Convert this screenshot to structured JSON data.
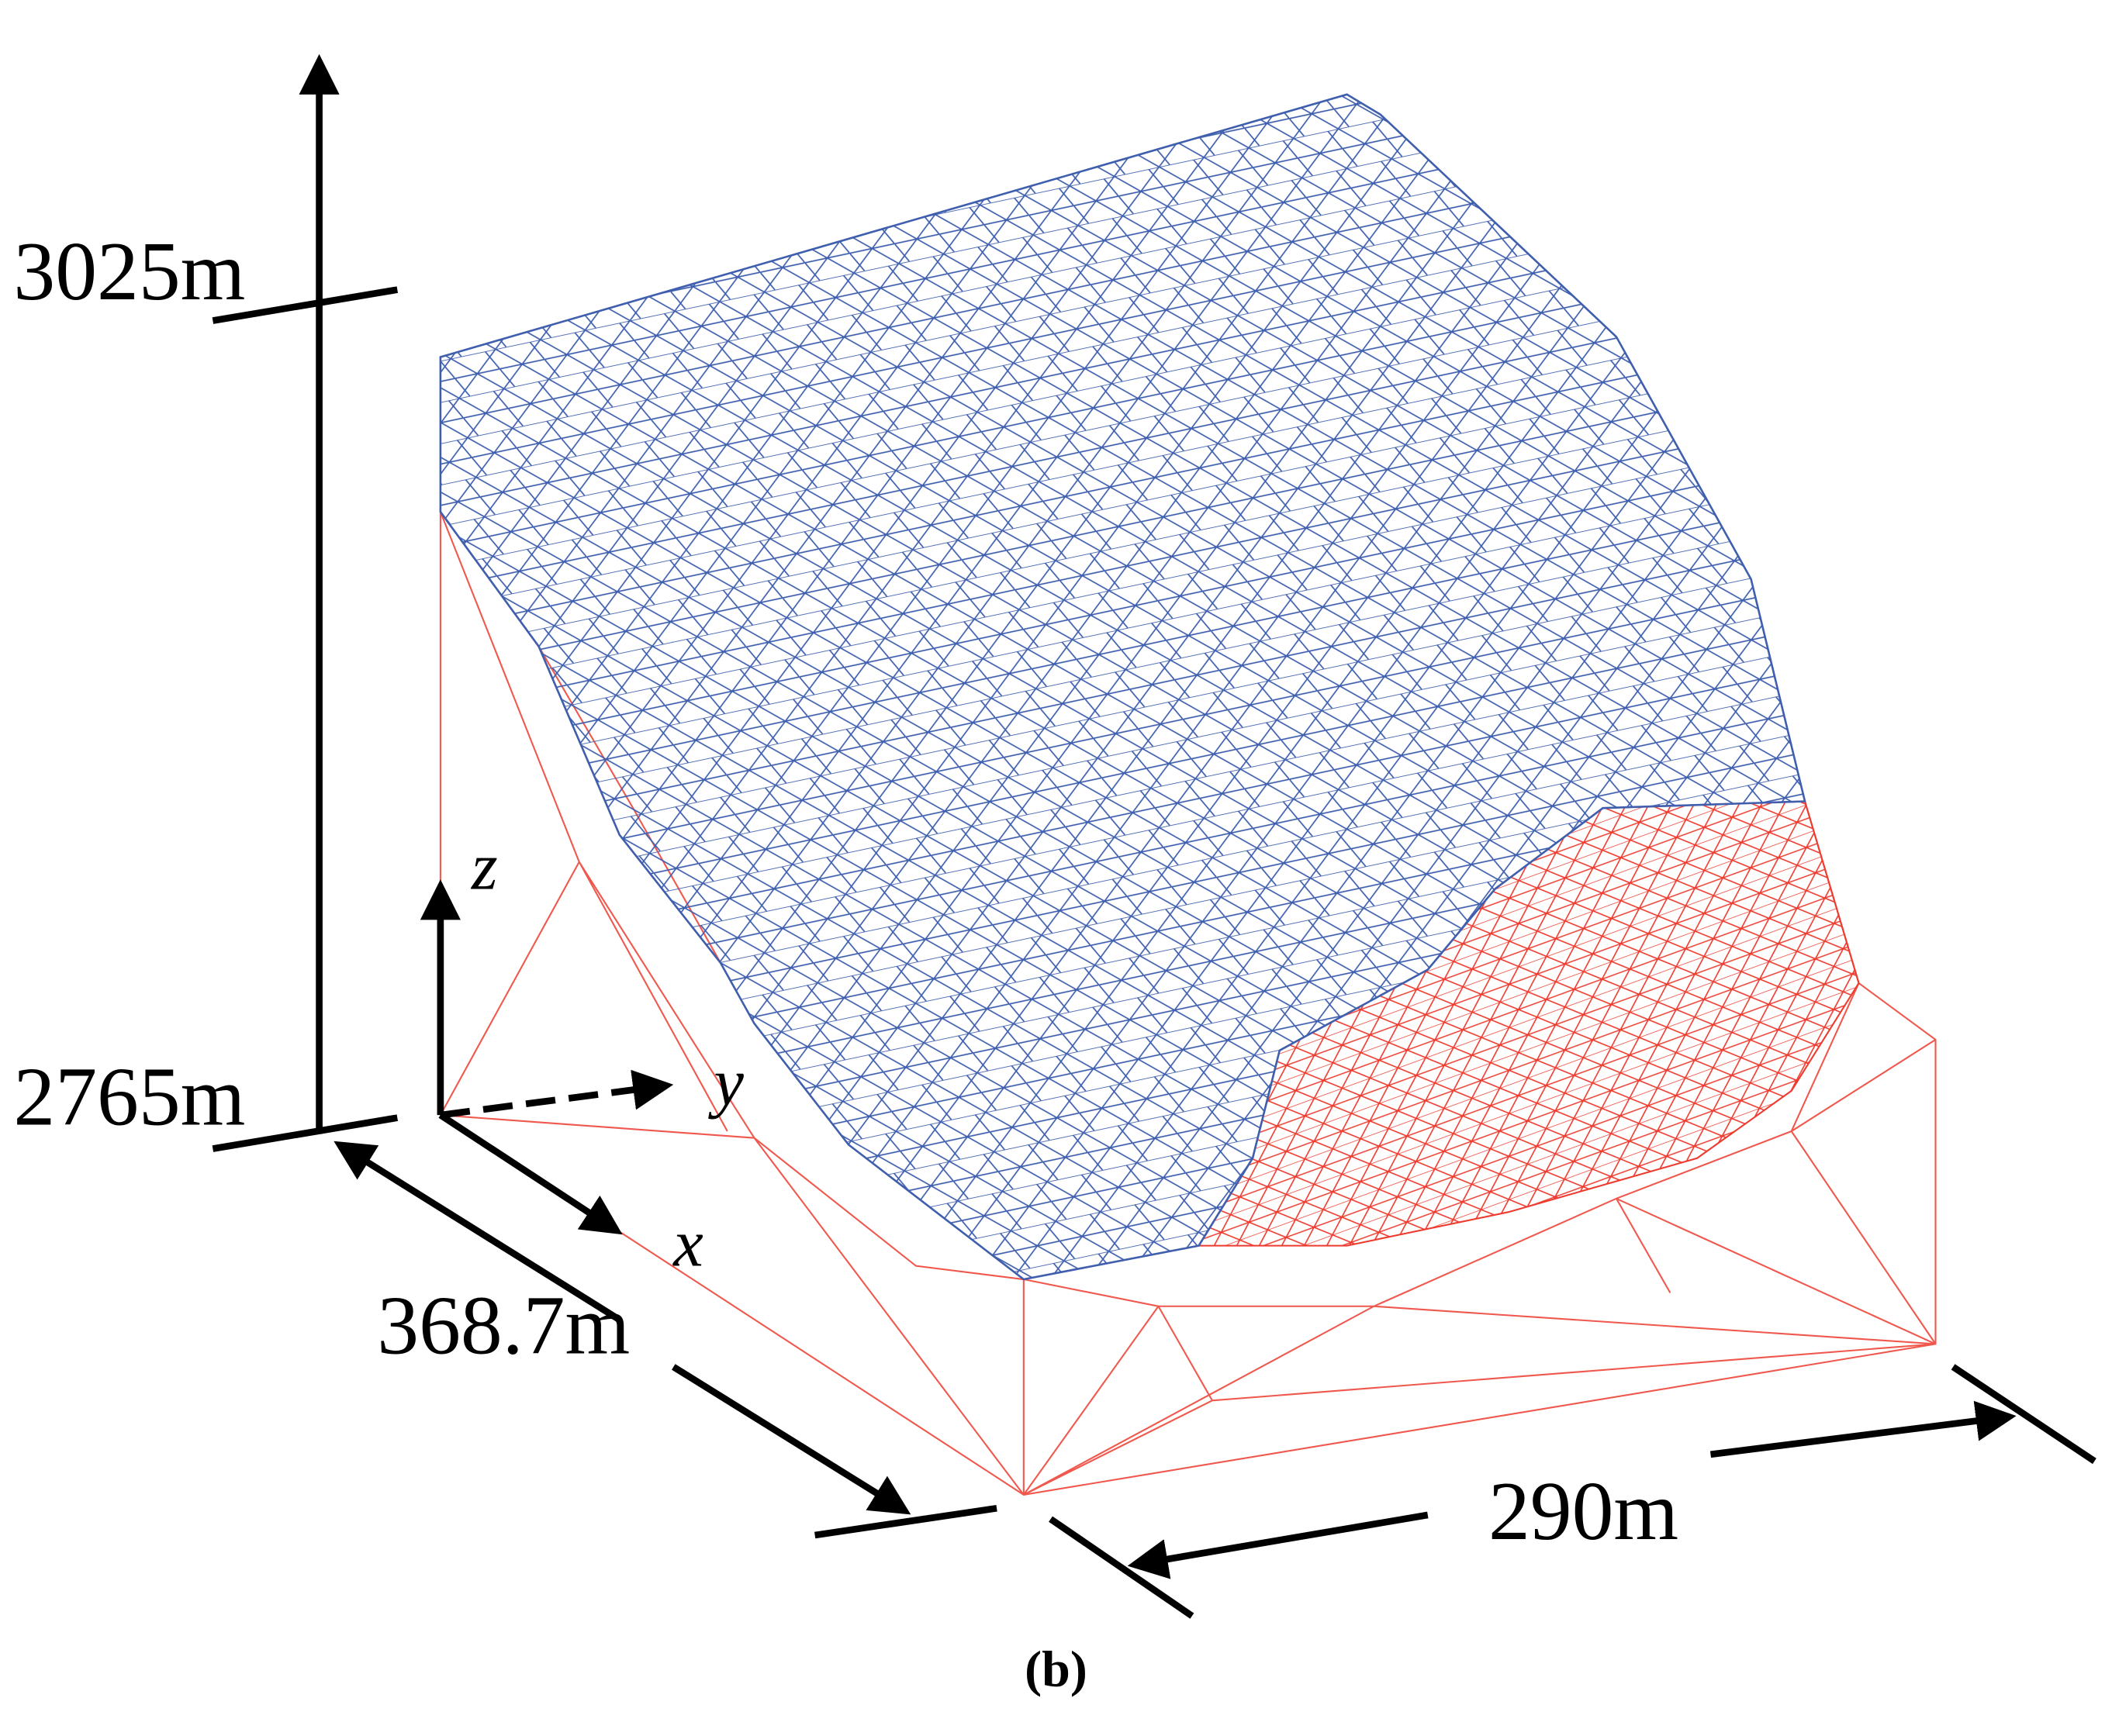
{
  "dimensions": {
    "elevation_top": "3025m",
    "elevation_bottom": "2765m",
    "length_x": "368.7m",
    "length_y": "290m"
  },
  "axes": {
    "z": "z",
    "y": "y",
    "x": "x"
  },
  "caption": "(b)"
}
